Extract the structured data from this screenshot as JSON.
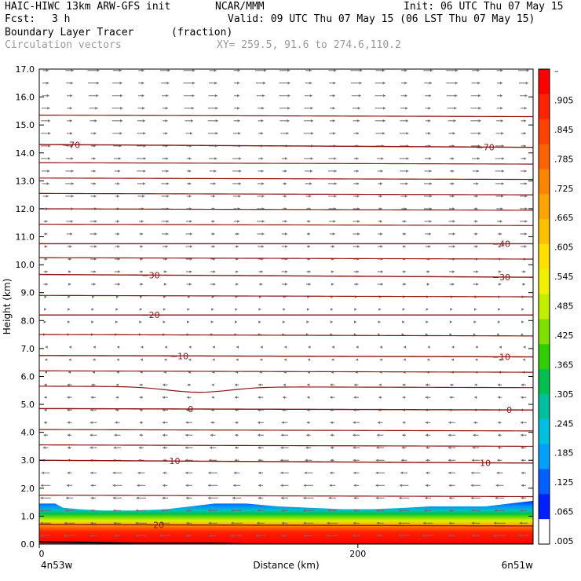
{
  "header": {
    "title": "HAIC-HIWC 13km ARW-GFS init",
    "org": "NCAR/MMM",
    "init": "Init: 06 UTC Thu 07 May 15",
    "fcst_label": "Fcst:",
    "fcst_value": "3 h",
    "valid": "Valid: 09 UTC Thu 07 May 15 (06 LST Thu 07 May 15)",
    "field": "Boundary Layer Tracer",
    "field_units": "(fraction)",
    "vectors": "Circulation vectors",
    "xy": "XY= 259.5, 91.6 to 274.6,110.2"
  },
  "chart_data": {
    "type": "heatmap",
    "xlabel": "Distance (km)",
    "ylabel": "Height (km)",
    "xlim": [
      0,
      310
    ],
    "ylim": [
      0,
      17
    ],
    "x_ticks": [
      0,
      200
    ],
    "x_tick_labels": [
      "0",
      "200"
    ],
    "x_end_labels": [
      "4n53w",
      "6n51w"
    ],
    "y_ticks": [
      0,
      1,
      2,
      3,
      4,
      5,
      6,
      7,
      8,
      9,
      10,
      11,
      12,
      13,
      14,
      15,
      16,
      17
    ],
    "y_tick_labels": [
      "0.0",
      "1.0",
      "2.0",
      "3.0",
      "4.0",
      "5.0",
      "6.0",
      "7.0",
      "8.0",
      "9.0",
      "10.0",
      "11.0",
      "12.0",
      "13.0",
      "14.0",
      "15.0",
      "16.0",
      "17.0"
    ],
    "colorbar": {
      "labels": [
        "–",
        ".905",
        ".845",
        ".785",
        ".725",
        ".665",
        ".605",
        ".545",
        ".485",
        ".425",
        ".365",
        ".305",
        ".245",
        ".185",
        ".125",
        ".065",
        ".005"
      ],
      "colors": [
        "#ff0000",
        "#ff2400",
        "#ff4200",
        "#ff6200",
        "#ff8400",
        "#ffa400",
        "#ffc000",
        "#ffe000",
        "#f0f000",
        "#c0f000",
        "#80e000",
        "#30d000",
        "#00c050",
        "#00c0a0",
        "#00c0e0",
        "#00a0ff",
        "#0060ff",
        "#0020ff",
        "#ffffff"
      ]
    },
    "tracer_top_km": [
      [
        0,
        1.45
      ],
      [
        10,
        1.45
      ],
      [
        15,
        1.3
      ],
      [
        25,
        1.25
      ],
      [
        40,
        1.2
      ],
      [
        60,
        1.2
      ],
      [
        80,
        1.25
      ],
      [
        95,
        1.35
      ],
      [
        110,
        1.45
      ],
      [
        130,
        1.45
      ],
      [
        150,
        1.35
      ],
      [
        170,
        1.3
      ],
      [
        190,
        1.25
      ],
      [
        210,
        1.25
      ],
      [
        230,
        1.3
      ],
      [
        245,
        1.35
      ],
      [
        260,
        1.35
      ],
      [
        280,
        1.35
      ],
      [
        295,
        1.45
      ],
      [
        310,
        1.55
      ]
    ],
    "isotherms_degC": [
      {
        "value": -70,
        "label": "−70",
        "label_x": [
          20,
          280
        ],
        "y_start": 14.3,
        "y_end": 14.2
      },
      {
        "value": -40,
        "label": "−40",
        "label_x": [
          290
        ],
        "y_start": 10.75,
        "y_end": 10.75
      },
      {
        "value": -30,
        "label": "−30",
        "label_x": [
          70,
          290
        ],
        "y_start": 9.65,
        "y_end": 9.55
      },
      {
        "value": -20,
        "label": "−20",
        "label_x": [
          70
        ],
        "y_start": 8.2,
        "y_end": 8.2
      },
      {
        "value": -10,
        "label": "−10",
        "label_x": [
          88,
          290
        ],
        "y_start": 6.75,
        "y_end": 6.7
      },
      {
        "value": 0,
        "label": "0",
        "label_x": [
          95,
          295
        ],
        "y_start": 4.85,
        "y_end": 4.8
      },
      {
        "value": 10,
        "label": "10",
        "label_x": [
          85,
          280
        ],
        "y_start": 3.0,
        "y_end": 2.9
      },
      {
        "value": 20,
        "label": "20",
        "label_x": [
          75
        ],
        "y_start": 0.7,
        "y_end": 0.65
      }
    ],
    "other_contours_km": [
      15.35,
      13.65,
      13.1,
      12.55,
      12.0,
      11.45,
      10.25,
      8.9,
      7.5,
      6.2,
      5.65,
      4.1,
      3.55,
      1.75
    ],
    "wind_regimes": [
      {
        "from_km": 0,
        "to_km": 6,
        "direction": "westward"
      },
      {
        "from_km": 6,
        "to_km": 9,
        "direction": "weak"
      },
      {
        "from_km": 9,
        "to_km": 17,
        "direction": "eastward"
      }
    ],
    "grid": false,
    "legend": "colorbar-right"
  }
}
